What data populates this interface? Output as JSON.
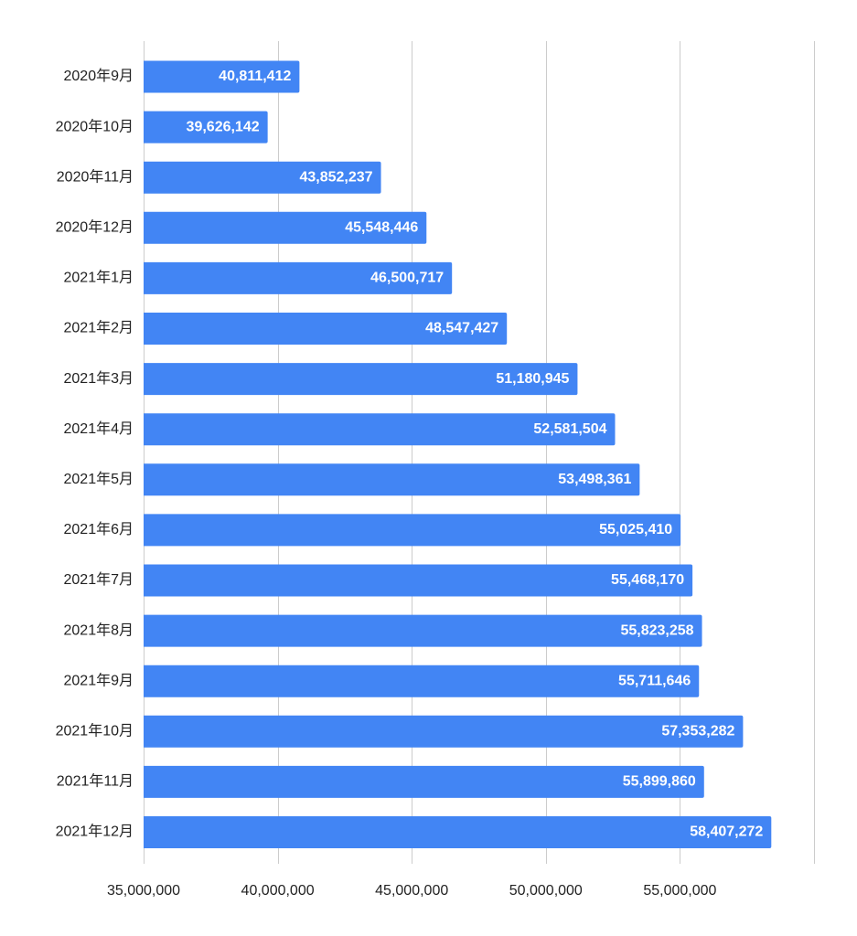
{
  "chart_data": {
    "type": "bar",
    "orientation": "horizontal",
    "title": "",
    "xlabel": "",
    "ylabel": "",
    "categories": [
      "2020年9月",
      "2020年10月",
      "2020年11月",
      "2020年12月",
      "2021年1月",
      "2021年2月",
      "2021年3月",
      "2021年4月",
      "2021年5月",
      "2021年6月",
      "2021年7月",
      "2021年8月",
      "2021年9月",
      "2021年10月",
      "2021年11月",
      "2021年12月"
    ],
    "values": [
      40811412,
      39626142,
      43852237,
      45548446,
      46500717,
      48547427,
      51180945,
      52581504,
      53498361,
      55025410,
      55468170,
      55823258,
      55711646,
      57353282,
      55899860,
      58407272
    ],
    "value_labels": [
      "40,811,412",
      "39,626,142",
      "43,852,237",
      "45,548,446",
      "46,500,717",
      "48,547,427",
      "51,180,945",
      "52,581,504",
      "53,498,361",
      "55,025,410",
      "55,468,170",
      "55,823,258",
      "55,711,646",
      "57,353,282",
      "55,899,860",
      "58,407,272"
    ],
    "xlim": [
      35000000,
      60000000
    ],
    "x_ticks": [
      35000000,
      40000000,
      45000000,
      50000000,
      55000000
    ],
    "x_tick_labels": [
      "35,000,000",
      "40,000,000",
      "45,000,000",
      "50,000,000",
      "55,000,000"
    ],
    "grid": true,
    "legend": "none",
    "colors": {
      "bar": "#4285f4",
      "bar_label": "#ffffff",
      "gridline": "#cccccc",
      "text": "#222222"
    }
  }
}
